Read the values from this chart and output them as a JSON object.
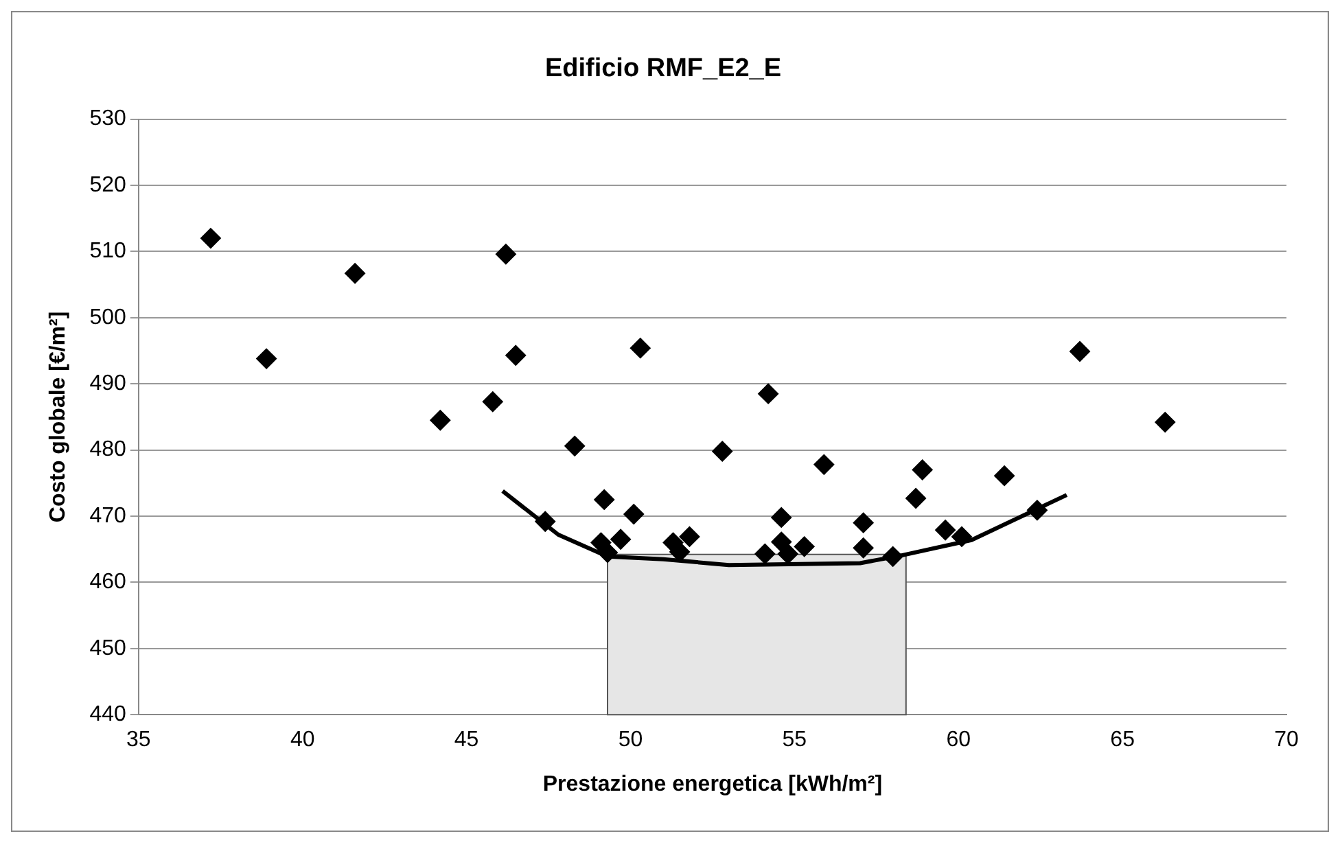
{
  "chart_data": {
    "type": "scatter",
    "title": "Edificio RMF_E2_E",
    "xlabel": "Prestazione energetica [kWh/m²]",
    "ylabel": "Costo globale [€/m²]",
    "xlim": [
      35,
      70
    ],
    "xticks": [
      35,
      40,
      45,
      50,
      55,
      60,
      65,
      70
    ],
    "ylim": [
      440,
      530
    ],
    "yticks": [
      440,
      450,
      460,
      470,
      480,
      490,
      500,
      510,
      520,
      530
    ],
    "grid": "y",
    "marker": "diamond",
    "legend": false,
    "series": [
      {
        "color": "#000000",
        "x": [
          37.2,
          38.9,
          41.6,
          46.2,
          46.5,
          50.3,
          44.2,
          45.8,
          48.3,
          52.8,
          63.7,
          66.3,
          54.2,
          55.9,
          58.9,
          61.4,
          47.4,
          49.2,
          50.1,
          49.1,
          49.3,
          49.7,
          51.3,
          51.8,
          51.5,
          54.6,
          54.1,
          54.6,
          54.8,
          55.3,
          57.1,
          57.1,
          58.0,
          58.7,
          59.6,
          60.1,
          62.4
        ],
        "values": [
          512.0,
          493.8,
          506.7,
          509.6,
          494.3,
          495.4,
          484.5,
          487.3,
          480.6,
          479.8,
          494.9,
          484.2,
          488.5,
          477.8,
          477.0,
          476.1,
          469.2,
          472.5,
          470.3,
          466.0,
          464.5,
          466.5,
          466.0,
          466.9,
          464.6,
          469.8,
          464.3,
          466.1,
          464.3,
          465.4,
          469.0,
          465.2,
          463.9,
          472.7,
          467.9,
          466.9,
          470.9
        ]
      },
      {
        "type": "line",
        "color": "#000000",
        "marker": "none",
        "x": [
          46.1,
          47.8,
          49.3,
          51.0,
          53.0,
          57.0,
          58.2,
          60.4,
          63.3
        ],
        "values": [
          473.8,
          467.2,
          463.9,
          463.5,
          462.6,
          462.9,
          464.0,
          466.4,
          473.2
        ]
      }
    ],
    "bands": [
      {
        "axis": "x",
        "from": 49.3,
        "to": 58.4,
        "color": "#e6e6e6"
      }
    ]
  }
}
